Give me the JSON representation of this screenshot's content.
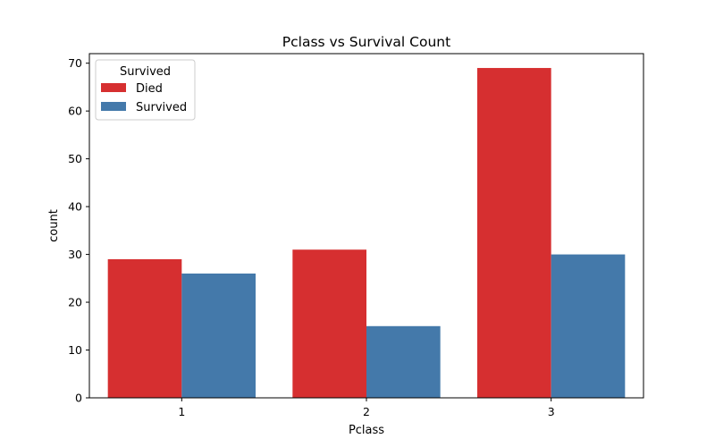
{
  "chart_data": {
    "type": "bar",
    "title": "Pclass vs Survival Count",
    "xlabel": "Pclass",
    "ylabel": "count",
    "categories": [
      "1",
      "2",
      "3"
    ],
    "series": [
      {
        "name": "Died",
        "values": [
          29,
          31,
          69
        ],
        "color": "#d62f30"
      },
      {
        "name": "Survived",
        "values": [
          26,
          15,
          30
        ],
        "color": "#4479aa"
      }
    ],
    "ylim": [
      0,
      72
    ],
    "yticks": [
      0,
      10,
      20,
      30,
      40,
      50,
      60,
      70
    ],
    "legend": {
      "title": "Survived",
      "placement": "top-left"
    },
    "grid": false
  }
}
